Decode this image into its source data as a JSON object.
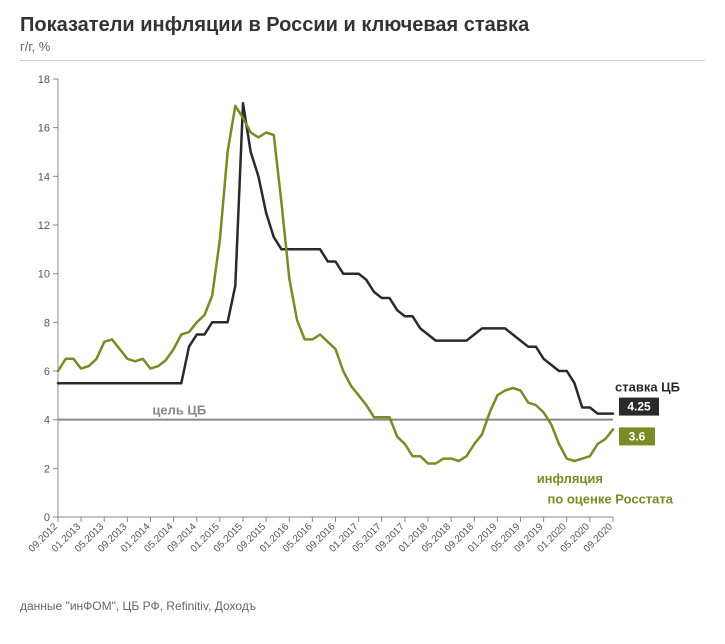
{
  "title": "Показатели инфляции в России и ключевая ставка",
  "subtitle": "г/г, %",
  "source": "данные \"инФОМ\", ЦБ РФ, Refinitiv, Доходъ",
  "chart": {
    "type": "line",
    "background_color": "#ffffff",
    "axis_color": "#888888",
    "axis_width": 1,
    "tick_color": "#888888",
    "grid_on": false,
    "ylim": [
      0,
      18
    ],
    "ytick_step": 2,
    "yticks": [
      0,
      2,
      4,
      6,
      8,
      10,
      12,
      14,
      16,
      18
    ],
    "y_fontsize": 11,
    "x_labels": [
      "09.2012",
      "01.2013",
      "05.2013",
      "09.2013",
      "01.2014",
      "05.2014",
      "09.2014",
      "01.2015",
      "05.2015",
      "09.2015",
      "01.2016",
      "05.2016",
      "09.2016",
      "01.2017",
      "05.2017",
      "09.2017",
      "01.2018",
      "05.2018",
      "09.2018",
      "01.2019",
      "05.2019",
      "09.2019",
      "01.2020",
      "05.2020",
      "09.2020"
    ],
    "x_fontsize": 10,
    "x_label_rotation": -45,
    "target_line": {
      "value": 4,
      "color": "#888888",
      "width": 2,
      "label": "цель ЦБ",
      "label_color": "#888888",
      "label_fontsize": 13,
      "label_fontweight": "bold"
    },
    "series": [
      {
        "name": "ставка ЦБ",
        "color": "#2a2a2a",
        "width": 2.5,
        "label": "ставка ЦБ",
        "label_color": "#2a2a2a",
        "end_value": 4.25,
        "end_badge_bg": "#2a2a2a",
        "end_badge_fg": "#ffffff",
        "data": [
          5.5,
          5.5,
          5.5,
          5.5,
          5.5,
          5.5,
          5.5,
          5.5,
          5.5,
          5.5,
          5.5,
          5.5,
          5.5,
          5.5,
          5.5,
          5.5,
          5.5,
          7.0,
          7.5,
          7.5,
          8.0,
          8.0,
          8.0,
          9.5,
          17.0,
          15.0,
          14.0,
          12.5,
          11.5,
          11.0,
          11.0,
          11.0,
          11.0,
          11.0,
          11.0,
          10.5,
          10.5,
          10.0,
          10.0,
          10.0,
          9.75,
          9.25,
          9.0,
          9.0,
          8.5,
          8.25,
          8.25,
          7.75,
          7.5,
          7.25,
          7.25,
          7.25,
          7.25,
          7.25,
          7.5,
          7.75,
          7.75,
          7.75,
          7.75,
          7.5,
          7.25,
          7.0,
          7.0,
          6.5,
          6.25,
          6.0,
          6.0,
          5.5,
          4.5,
          4.5,
          4.25,
          4.25,
          4.25
        ]
      },
      {
        "name": "инфляция по оценке Росстата",
        "line1": "инфляция",
        "line2": "по оценке Росстата",
        "color": "#7a8a25",
        "width": 2.5,
        "label_color": "#7a8a25",
        "end_value": 3.6,
        "end_badge_bg": "#7a8a25",
        "end_badge_fg": "#ffffff",
        "data": [
          6.0,
          6.5,
          6.5,
          6.1,
          6.2,
          6.5,
          7.2,
          7.3,
          6.9,
          6.5,
          6.4,
          6.5,
          6.1,
          6.2,
          6.45,
          6.9,
          7.5,
          7.6,
          8.0,
          8.3,
          9.1,
          11.4,
          15.0,
          16.9,
          16.4,
          15.8,
          15.6,
          15.8,
          15.7,
          12.9,
          9.8,
          8.1,
          7.3,
          7.3,
          7.5,
          7.2,
          6.9,
          6.0,
          5.4,
          5.0,
          4.6,
          4.1,
          4.1,
          4.1,
          3.3,
          3.0,
          2.5,
          2.5,
          2.2,
          2.2,
          2.4,
          2.4,
          2.3,
          2.5,
          3.0,
          3.4,
          4.3,
          5.0,
          5.2,
          5.3,
          5.2,
          4.7,
          4.6,
          4.3,
          3.8,
          3.0,
          2.4,
          2.3,
          2.4,
          2.5,
          3.0,
          3.2,
          3.6
        ]
      }
    ]
  }
}
